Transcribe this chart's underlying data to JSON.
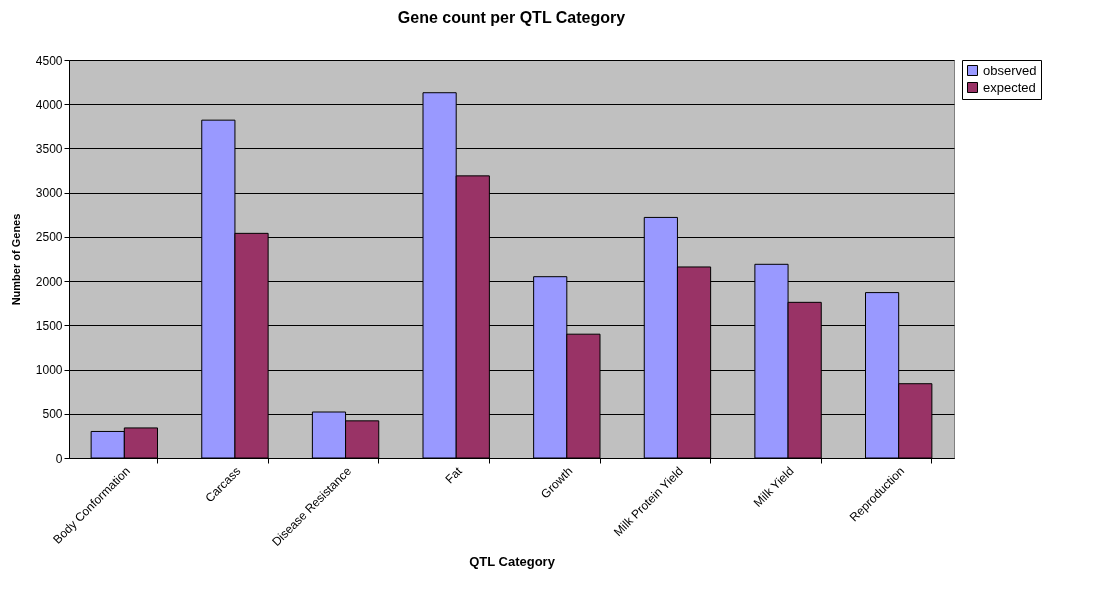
{
  "chart_data": {
    "type": "bar",
    "title": "Gene count per QTL Category",
    "xlabel": "QTL Category",
    "ylabel": "Number of Genes",
    "categories": [
      "Body Conformation",
      "Carcass",
      "Disease Resistance",
      "Fat",
      "Growth",
      "Milk Protein Yield",
      "Milk Yield",
      "Reproduction"
    ],
    "series": [
      {
        "name": "observed",
        "color": "#9999ff",
        "values": [
          300,
          3820,
          520,
          4130,
          2050,
          2720,
          2190,
          1870
        ]
      },
      {
        "name": "expected",
        "color": "#993366",
        "values": [
          340,
          2540,
          420,
          3190,
          1400,
          2160,
          1760,
          840
        ]
      }
    ],
    "ylim": [
      0,
      4500
    ],
    "yticks": [
      0,
      500,
      1000,
      1500,
      2000,
      2500,
      3000,
      3500,
      4000,
      4500
    ],
    "grid": "y",
    "legend": "right"
  }
}
